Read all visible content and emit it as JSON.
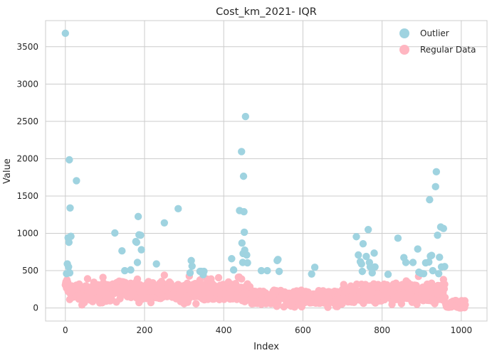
{
  "chart_data": {
    "type": "scatter",
    "title": "Cost_km_2021- IQR",
    "xlabel": "Index",
    "ylabel": "Value",
    "xlim": [
      -50,
      1065
    ],
    "ylim": [
      -175,
      3850
    ],
    "xticks": [
      0,
      200,
      400,
      600,
      800,
      1000
    ],
    "yticks": [
      0,
      500,
      1000,
      1500,
      2000,
      2500,
      3000,
      3500
    ],
    "grid": true,
    "legend_position": "top-right",
    "series": [
      {
        "name": "Outlier",
        "color": "#9fd3e0",
        "points": [
          [
            0,
            3680
          ],
          [
            3,
            460
          ],
          [
            5,
            590
          ],
          [
            7,
            940
          ],
          [
            8,
            550
          ],
          [
            9,
            880
          ],
          [
            10,
            1985
          ],
          [
            11,
            470
          ],
          [
            12,
            1340
          ],
          [
            14,
            960
          ],
          [
            28,
            1705
          ],
          [
            125,
            1005
          ],
          [
            143,
            765
          ],
          [
            150,
            500
          ],
          [
            165,
            510
          ],
          [
            178,
            890
          ],
          [
            180,
            880
          ],
          [
            182,
            610
          ],
          [
            184,
            1225
          ],
          [
            186,
            980
          ],
          [
            190,
            975
          ],
          [
            192,
            780
          ],
          [
            230,
            590
          ],
          [
            250,
            1140
          ],
          [
            285,
            1330
          ],
          [
            315,
            470
          ],
          [
            318,
            635
          ],
          [
            320,
            560
          ],
          [
            340,
            490
          ],
          [
            343,
            490
          ],
          [
            348,
            445
          ],
          [
            350,
            490
          ],
          [
            420,
            660
          ],
          [
            425,
            510
          ],
          [
            440,
            1305
          ],
          [
            445,
            2095
          ],
          [
            446,
            870
          ],
          [
            448,
            610
          ],
          [
            449,
            730
          ],
          [
            450,
            1765
          ],
          [
            451,
            1290
          ],
          [
            452,
            1015
          ],
          [
            453,
            775
          ],
          [
            455,
            2565
          ],
          [
            458,
            710
          ],
          [
            460,
            605
          ],
          [
            495,
            500
          ],
          [
            510,
            500
          ],
          [
            535,
            635
          ],
          [
            537,
            650
          ],
          [
            540,
            490
          ],
          [
            622,
            455
          ],
          [
            630,
            545
          ],
          [
            735,
            955
          ],
          [
            740,
            710
          ],
          [
            745,
            620
          ],
          [
            748,
            590
          ],
          [
            750,
            490
          ],
          [
            752,
            860
          ],
          [
            760,
            690
          ],
          [
            765,
            1050
          ],
          [
            768,
            610
          ],
          [
            770,
            550
          ],
          [
            775,
            470
          ],
          [
            780,
            735
          ],
          [
            782,
            550
          ],
          [
            815,
            450
          ],
          [
            840,
            935
          ],
          [
            855,
            675
          ],
          [
            860,
            610
          ],
          [
            878,
            610
          ],
          [
            890,
            790
          ],
          [
            893,
            480
          ],
          [
            898,
            465
          ],
          [
            905,
            460
          ],
          [
            910,
            605
          ],
          [
            918,
            615
          ],
          [
            920,
            1450
          ],
          [
            922,
            695
          ],
          [
            925,
            705
          ],
          [
            928,
            500
          ],
          [
            935,
            1625
          ],
          [
            937,
            1825
          ],
          [
            940,
            975
          ],
          [
            943,
            460
          ],
          [
            945,
            680
          ],
          [
            948,
            1085
          ],
          [
            950,
            550
          ],
          [
            955,
            1065
          ],
          [
            958,
            555
          ]
        ]
      },
      {
        "name": "Regular Data",
        "color": "#ffb6c1"
      }
    ]
  }
}
